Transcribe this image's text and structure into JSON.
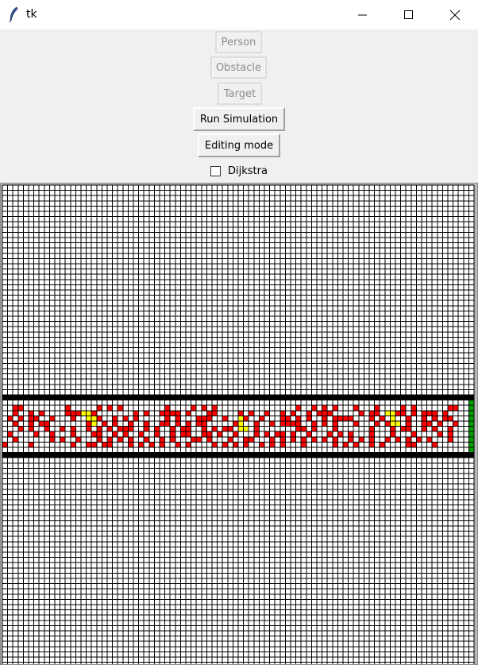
{
  "window": {
    "title": "tk",
    "icons": {
      "app": "feather-icon",
      "minimize": "minimize-icon",
      "maximize": "maximize-icon",
      "close": "close-icon"
    }
  },
  "toolbar": {
    "person_label": "Person",
    "obstacle_label": "Obstacle",
    "target_label": "Target",
    "run_label": "Run Simulation",
    "edit_label": "Editing mode",
    "dijkstra_label": "Dijkstra",
    "dijkstra_checked": false
  },
  "grid": {
    "cols": 90,
    "rows": 92,
    "colors": {
      "background": "#ffffff",
      "lines": "#000000",
      "obstacle": "#000000",
      "person": "#ff0000",
      "target": "#00a000",
      "path": "#ffff00"
    },
    "obstacle_rows": [
      40,
      51
    ],
    "corridor_rows": [
      41,
      50
    ],
    "target_col": 89,
    "person_rows": [
      "..xx........x.....x.x.x........x....x.x.x...............x..x.x.x...x...x....x.x......xx..",
      "..x..x.x....xxx..x.......x.x..xxxx.x...xx....x.x..x..x.x..x.xxx.....x.xx.x.xx.x.xxx.x....",
      ".x.x.xx..x...x....x..x.x.x.....x.x...xxx..x..xx..x...xx.x.x..x.xxxx...x.x.x..x..x.x.xx...",
      "..x..x.xx.......x..x.x..x..x..xx.x.x.xx.....xx..x..x.xxxx..x.x.x...x...x.x.x.x..xx.x..x..",
      "...x.x..x..x.x..x.x.x.xxx..x.x..x.xx..x.x.xx..x.x.......xx.x...x......x...x.xx..x.x..x...",
      ".x....x..x...x...xx..x.x..x..x..x.xx..xx.x..x...x.x.xx.x..x...x.x.x...x...x...x....x.x...",
      "..x......x.x..x...x.x.x.x..x..x.x...xx.x...x..xx...x.x.x.x.x.x.x..x.x.x..x.x.x.x.x...x...",
      "x....x.......x..xx.xx...x.x.x.x..x.x....x.x.x.x..x.x.x...x.....x.x.x..x.x....xx...x....."
    ],
    "path_cells": [
      [
        43,
        15
      ],
      [
        43,
        16
      ],
      [
        44,
        16
      ],
      [
        44,
        17
      ],
      [
        45,
        17
      ],
      [
        44,
        45
      ],
      [
        45,
        45
      ],
      [
        46,
        45
      ],
      [
        46,
        46
      ],
      [
        43,
        73
      ],
      [
        43,
        74
      ],
      [
        44,
        74
      ],
      [
        45,
        75
      ],
      [
        45,
        74
      ]
    ]
  }
}
